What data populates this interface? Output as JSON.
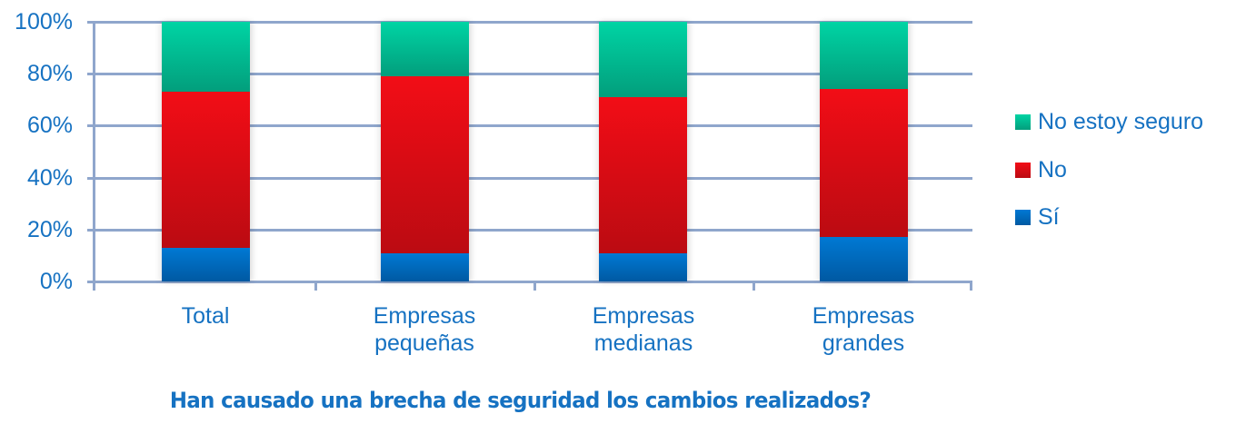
{
  "chart_data": {
    "type": "bar",
    "stacked": true,
    "percent": true,
    "title": "Han causado una brecha de seguridad los cambios realizados?",
    "xlabel": "",
    "ylabel": "",
    "ylim": [
      0,
      100
    ],
    "yticks": [
      "0%",
      "20%",
      "40%",
      "60%",
      "80%",
      "100%"
    ],
    "grid": true,
    "legend_position": "right",
    "categories": [
      "Total",
      "Empresas pequeñas",
      "Empresas medianas",
      "Empresas grandes"
    ],
    "category_lines": [
      [
        "Total"
      ],
      [
        "Empresas",
        "pequeñas"
      ],
      [
        "Empresas",
        "medianas"
      ],
      [
        "Empresas",
        "grandes"
      ]
    ],
    "series": [
      {
        "name": "Sí",
        "color": "#0070c8",
        "values": [
          13,
          11,
          11,
          17
        ]
      },
      {
        "name": "No",
        "color": "#e00d15",
        "values": [
          60,
          68,
          60,
          57
        ]
      },
      {
        "name": "No estoy seguro",
        "color": "#00c49a",
        "values": [
          27,
          21,
          29,
          26
        ]
      }
    ]
  },
  "legend": [
    {
      "label": "No estoy seguro",
      "color": "#00c49a"
    },
    {
      "label": "No",
      "color": "#e00d15"
    },
    {
      "label": "Sí",
      "color": "#0070c8"
    }
  ]
}
